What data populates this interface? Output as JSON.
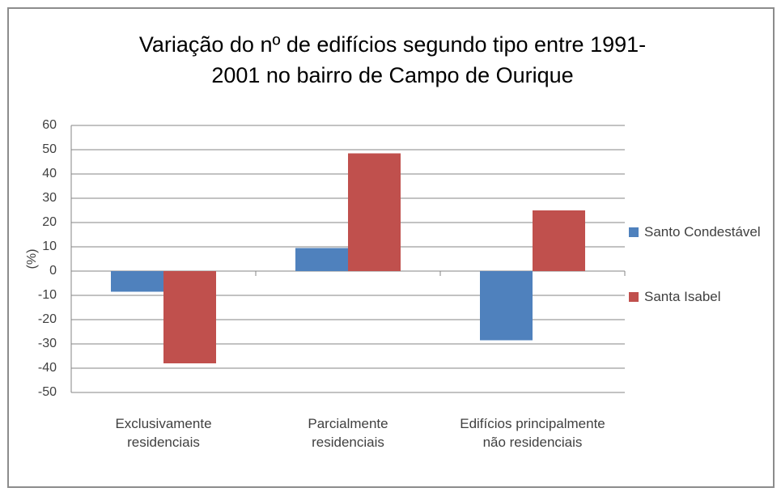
{
  "chart_data": {
    "type": "bar",
    "title": "Variação do nº de edifícios segundo tipo entre 1991-2001 no bairro de Campo de Ourique",
    "ylabel": "(%)",
    "categories": [
      "Exclusivamente residenciais",
      "Parcialmente residenciais",
      "Edifícios principalmente não residenciais"
    ],
    "series": [
      {
        "name": "Santo Condestável",
        "color": "#4f81bd",
        "values": [
          -8.5,
          9.5,
          -28.5
        ]
      },
      {
        "name": "Santa Isabel",
        "color": "#c0504d",
        "values": [
          -38,
          48.5,
          25
        ]
      }
    ],
    "ylim": [
      -50,
      60
    ],
    "yticks": [
      -50,
      -40,
      -30,
      -20,
      -10,
      0,
      10,
      20,
      30,
      40,
      50,
      60
    ],
    "grid": true,
    "legend": "right"
  }
}
